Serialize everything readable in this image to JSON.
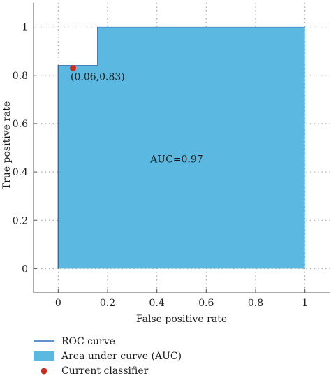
{
  "chart_data": {
    "type": "area",
    "xlabel": "False positive rate",
    "ylabel": "True positive rate",
    "xlim": [
      -0.1,
      1.1
    ],
    "ylim": [
      -0.1,
      1.1
    ],
    "xticks": [
      0,
      0.2,
      0.4,
      0.6,
      0.8,
      1
    ],
    "xtick_labels": [
      "0",
      "0.2",
      "0.4",
      "0.6",
      "0.8",
      "1"
    ],
    "yticks": [
      0,
      0.2,
      0.4,
      0.6,
      0.8,
      1
    ],
    "ytick_labels": [
      "0",
      "0.2",
      "0.4",
      "0.6",
      "0.8",
      "1"
    ],
    "grid": true,
    "series": [
      {
        "name": "ROC curve",
        "x": [
          0,
          0,
          0.16,
          0.16,
          1,
          1
        ],
        "y": [
          0,
          0.84,
          0.84,
          1,
          1,
          0
        ]
      }
    ],
    "area_label": "Area under curve (AUC)",
    "point": {
      "name": "Current classifier",
      "x": 0.06,
      "y": 0.83
    },
    "annotations": [
      {
        "text": "(0.06,0.83)",
        "x": 0.05,
        "y": 0.78
      },
      {
        "text": "AUC=0.97",
        "x": 0.48,
        "y": 0.44
      }
    ],
    "legend": {
      "placement": "bottom-left",
      "items": [
        "ROC curve",
        "Area under curve (AUC)",
        "Current classifier"
      ]
    },
    "colors": {
      "line": "#2a6db5",
      "fill": "#5bb8e0",
      "point": "#cc2b1d",
      "grid": "#9a9a9a",
      "axis": "#555555"
    }
  }
}
